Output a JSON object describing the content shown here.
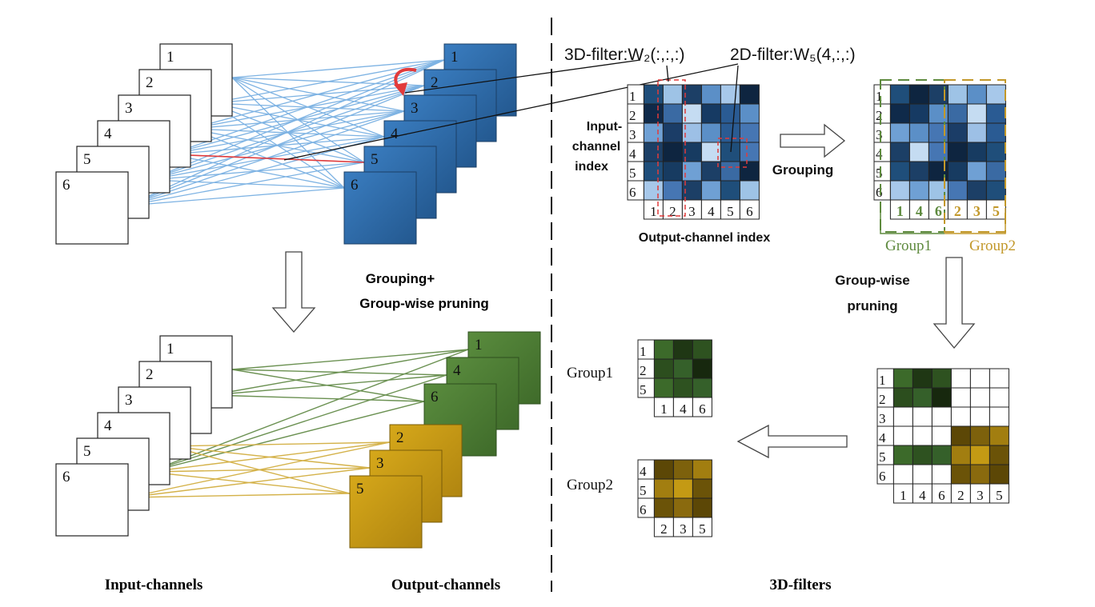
{
  "labels": {
    "input_channels": "Input-channels",
    "output_channels": "Output-channels",
    "three_d_filters": "3D-filters",
    "grouping_pruning_line1": "Grouping+",
    "grouping_pruning_line2": "Group-wise pruning",
    "filter_3d": "3D-filter:W₂(:,:,:)",
    "filter_2d": "2D-filter:W₅(4,:,:)",
    "input_channel_index_1": "Input-",
    "input_channel_index_2": "channel",
    "input_channel_index_3": "index",
    "output_channel_index": "Output-channel index",
    "grouping": "Grouping",
    "group_wise_1": "Group-wise",
    "group_wise_2": "pruning",
    "group1": "Group1",
    "group2": "Group2"
  },
  "channels": [
    "1",
    "2",
    "3",
    "4",
    "5",
    "6"
  ],
  "lower_outputs": [
    "1",
    "4",
    "6",
    "2",
    "3",
    "5"
  ],
  "matrix_top": {
    "row_labels": [
      "1",
      "2",
      "3",
      "4",
      "5",
      "6"
    ],
    "col_labels": [
      "1",
      "2",
      "3",
      "4",
      "5",
      "6"
    ],
    "shades": [
      [
        "#1f4e7a",
        "#9ec3e6",
        "#1c3f66",
        "#5b8fc7",
        "#a7c8ea",
        "#0e2540"
      ],
      [
        "#0f2a4a",
        "#3a6aa3",
        "#c5dcf2",
        "#163a63",
        "#2a5b93",
        "#5b8fc7"
      ],
      [
        "#6fa0d4",
        "#1b3d67",
        "#9dc0e6",
        "#5b8fc7",
        "#2a5b93",
        "#4676b3"
      ],
      [
        "#1c3f66",
        "#0e2540",
        "#173b61",
        "#c5dcf2",
        "#1f4e7a",
        "#4676b3"
      ],
      [
        "#1f4e7a",
        "#173b61",
        "#6fa0d4",
        "#1c3f66",
        "#3a6aa3",
        "#0e2540"
      ],
      [
        "#a7c8ea",
        "#4676b3",
        "#1c3f66",
        "#6fa0d4",
        "#1f4e7a",
        "#9ec3e6"
      ]
    ]
  },
  "matrix_grouped": {
    "row_labels": [
      "1",
      "2",
      "3",
      "4",
      "5",
      "6"
    ],
    "col_labels": [
      "1",
      "4",
      "6",
      "2",
      "3",
      "5"
    ],
    "shades": [
      [
        "#1f4e7a",
        "#0e2540",
        "#1c3f66",
        "#9ec3e6",
        "#5b8fc7",
        "#a7c8ea"
      ],
      [
        "#0f2a4a",
        "#163a63",
        "#5b8fc7",
        "#3a6aa3",
        "#c5dcf2",
        "#2a5b93"
      ],
      [
        "#6fa0d4",
        "#5b8fc7",
        "#4676b3",
        "#1b3d67",
        "#9dc0e6",
        "#2a5b93"
      ],
      [
        "#1c3f66",
        "#c5dcf2",
        "#4676b3",
        "#0e2540",
        "#173b61",
        "#1f4e7a"
      ],
      [
        "#1f4e7a",
        "#1c3f66",
        "#0e2540",
        "#173b61",
        "#6fa0d4",
        "#3a6aa3"
      ],
      [
        "#a7c8ea",
        "#6fa0d4",
        "#9ec3e6",
        "#4676b3",
        "#1c3f66",
        "#1f4e7a"
      ]
    ]
  },
  "matrix_pruned": {
    "row_labels": [
      "1",
      "2",
      "3",
      "4",
      "5",
      "6"
    ],
    "col_labels": [
      "1",
      "4",
      "6",
      "2",
      "3",
      "5"
    ],
    "shades": [
      [
        "#3c6a2a",
        "#1f3714",
        "#2e5220",
        "#ffffff",
        "#ffffff",
        "#ffffff"
      ],
      [
        "#2c4e1e",
        "#35602a",
        "#17280e",
        "#ffffff",
        "#ffffff",
        "#ffffff"
      ],
      [
        "#ffffff",
        "#ffffff",
        "#ffffff",
        "#ffffff",
        "#ffffff",
        "#ffffff"
      ],
      [
        "#ffffff",
        "#ffffff",
        "#ffffff",
        "#5c4706",
        "#7d610c",
        "#a27e10"
      ],
      [
        "#3c6a2a",
        "#2e5220",
        "#35602a",
        "#a27e10",
        "#c49a14",
        "#6b5308"
      ],
      [
        "#ffffff",
        "#ffffff",
        "#ffffff",
        "#6b5308",
        "#8a6a0e",
        "#5c4706"
      ]
    ]
  },
  "group1_matrix": {
    "row_labels": [
      "1",
      "2",
      "5"
    ],
    "col_labels": [
      "1",
      "4",
      "6"
    ],
    "shades": [
      [
        "#3c6a2a",
        "#1f3714",
        "#2e5220"
      ],
      [
        "#2c4e1e",
        "#35602a",
        "#17280e"
      ],
      [
        "#3c6a2a",
        "#2e5220",
        "#35602a"
      ]
    ]
  },
  "group2_matrix": {
    "row_labels": [
      "4",
      "5",
      "6"
    ],
    "col_labels": [
      "2",
      "3",
      "5"
    ],
    "shades": [
      [
        "#5c4706",
        "#7d610c",
        "#a27e10"
      ],
      [
        "#a27e10",
        "#c49a14",
        "#6b5308"
      ],
      [
        "#6b5308",
        "#8a6a0e",
        "#5c4706"
      ]
    ]
  },
  "colors": {
    "blue_square": "#2e6fb2",
    "blue_line": "#7eb3e3",
    "green_square": "#4f7f35",
    "green_line": "#6b9152",
    "gold_square": "#c79a12",
    "gold_line": "#d4b24a",
    "red": "#e23b3b",
    "group1_text": "#5e8a3e",
    "group2_text": "#c2982a"
  }
}
